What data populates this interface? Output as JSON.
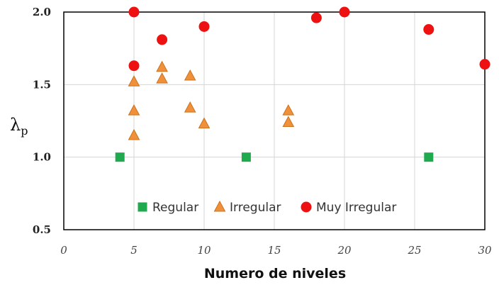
{
  "chart_data": {
    "type": "scatter",
    "xlabel": "Numero de niveles",
    "ylabel": "λ",
    "ylabel_subscript": "p",
    "xlim": [
      0,
      30
    ],
    "ylim": [
      0.5,
      2.0
    ],
    "xticks": [
      "0",
      "5",
      "10",
      "15",
      "20",
      "25",
      "30"
    ],
    "yticks": [
      "0.5",
      "1.0",
      "1.5",
      "2.0"
    ],
    "grid": true,
    "legend_position": "bottom-inside",
    "series": [
      {
        "name": "Regular",
        "marker": "square",
        "color": "#1faa4f",
        "points": [
          [
            4,
            1.0
          ],
          [
            13,
            1.0
          ],
          [
            26,
            1.0
          ]
        ]
      },
      {
        "name": "Irregular",
        "marker": "triangle",
        "color": "#f0903a",
        "stroke": "#c9731f",
        "points": [
          [
            5,
            1.52
          ],
          [
            5,
            1.32
          ],
          [
            5,
            1.15
          ],
          [
            7,
            1.62
          ],
          [
            7,
            1.54
          ],
          [
            9,
            1.56
          ],
          [
            9,
            1.34
          ],
          [
            10,
            1.23
          ],
          [
            16,
            1.32
          ],
          [
            16,
            1.24
          ]
        ]
      },
      {
        "name": "Muy Irregular",
        "marker": "circle",
        "color": "#ee1111",
        "points": [
          [
            5,
            2.0
          ],
          [
            5,
            1.63
          ],
          [
            7,
            1.81
          ],
          [
            10,
            1.9
          ],
          [
            18,
            1.96
          ],
          [
            20,
            2.0
          ],
          [
            26,
            1.88
          ],
          [
            30,
            1.64
          ]
        ]
      }
    ]
  }
}
